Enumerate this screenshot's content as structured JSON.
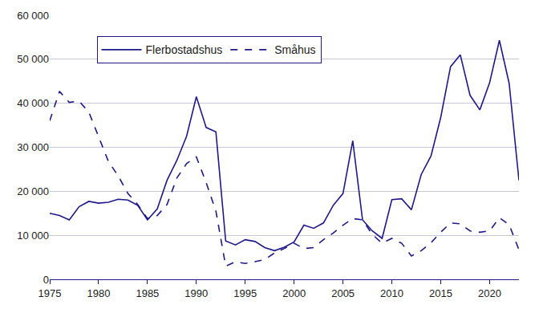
{
  "chart_data": {
    "type": "line",
    "x": [
      1975,
      1976,
      1977,
      1978,
      1979,
      1980,
      1981,
      1982,
      1983,
      1984,
      1985,
      1986,
      1987,
      1988,
      1989,
      1990,
      1991,
      1992,
      1993,
      1994,
      1995,
      1996,
      1997,
      1998,
      1999,
      2000,
      2001,
      2002,
      2003,
      2004,
      2005,
      2006,
      2007,
      2008,
      2009,
      2010,
      2011,
      2012,
      2013,
      2014,
      2015,
      2016,
      2017,
      2018,
      2019,
      2020,
      2021,
      2022,
      2023
    ],
    "series": [
      {
        "name": "Flerbostadshus",
        "color": "#1f1a8c",
        "line_style": "solid",
        "values": [
          15000,
          14500,
          13500,
          16500,
          17700,
          17300,
          17500,
          18200,
          18000,
          16800,
          13500,
          16000,
          22500,
          27000,
          32500,
          41500,
          34500,
          33500,
          8700,
          7800,
          9000,
          8600,
          7200,
          6500,
          7300,
          8500,
          12300,
          11600,
          12800,
          16800,
          19500,
          31500,
          13500,
          11000,
          9300,
          18100,
          18300,
          15800,
          23800,
          28000,
          36800,
          48300,
          51000,
          41800,
          38500,
          44700,
          54300,
          44500,
          22500
        ]
      },
      {
        "name": "Småhus",
        "color": "#1f1a8c",
        "line_style": "dash",
        "values": [
          36000,
          42700,
          40200,
          40500,
          38000,
          32500,
          26800,
          23500,
          19500,
          17000,
          13800,
          14500,
          17000,
          23000,
          26300,
          27800,
          22000,
          15500,
          3000,
          4000,
          3600,
          4000,
          4500,
          6000,
          7000,
          8200,
          7000,
          7200,
          9000,
          10500,
          12300,
          13800,
          13500,
          10200,
          8200,
          9300,
          8200,
          5300,
          6500,
          8300,
          10700,
          12800,
          12600,
          11000,
          10700,
          11000,
          14000,
          12400,
          6700
        ]
      }
    ],
    "xlim": [
      1975,
      2023
    ],
    "xticks": [
      1975,
      1980,
      1985,
      1990,
      1995,
      2000,
      2005,
      2010,
      2015,
      2020
    ],
    "ylim": [
      0,
      60000
    ],
    "yticks": [
      0,
      {
        "value": 10000,
        "label": "10 000"
      },
      {
        "value": 20000,
        "label": "20 000"
      },
      {
        "value": 30000,
        "label": "30 000"
      },
      {
        "value": 40000,
        "label": "40 000"
      },
      {
        "value": 50000,
        "label": "50 000"
      },
      {
        "value": 60000,
        "label": "60 000"
      }
    ],
    "grid": true,
    "legend": "top left"
  }
}
